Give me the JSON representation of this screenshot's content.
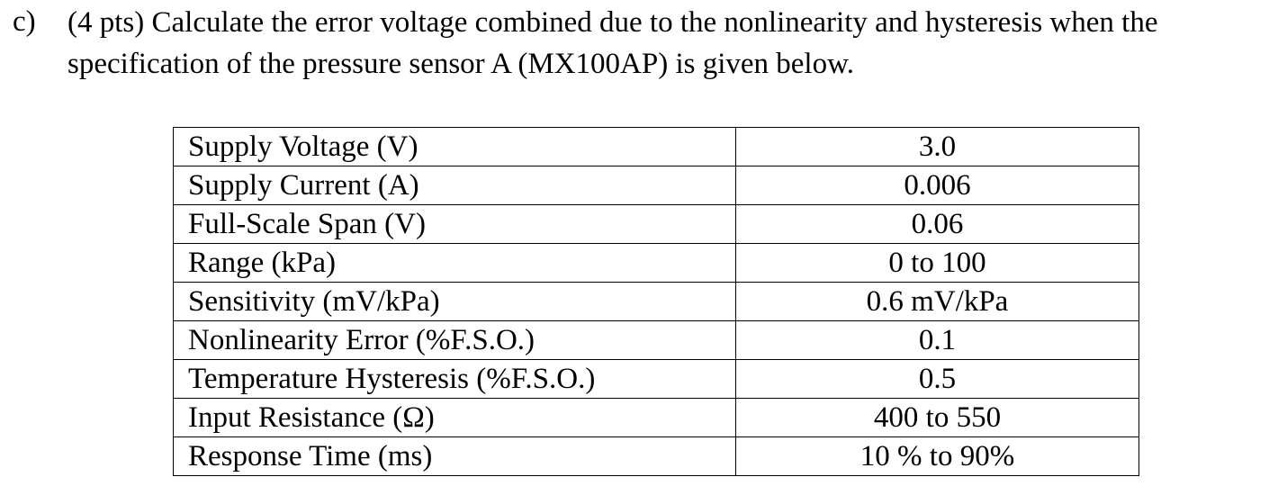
{
  "question": {
    "label": "c)",
    "lines": [
      "(4 pts) Calculate the error voltage combined due to the nonlinearity and hysteresis when the",
      "specification of the pressure sensor A (MX100AP) is given below."
    ]
  },
  "table": {
    "rows": [
      [
        "Supply Voltage (V)",
        "3.0"
      ],
      [
        "Supply Current (A)",
        "0.006"
      ],
      [
        "Full-Scale Span (V)",
        "0.06"
      ],
      [
        "Range (kPa)",
        "0 to 100"
      ],
      [
        "Sensitivity (mV/kPa)",
        "0.6 mV/kPa"
      ],
      [
        "Nonlinearity Error (%F.S.O.)",
        "0.1"
      ],
      [
        "Temperature Hysteresis (%F.S.O.)",
        "0.5"
      ],
      [
        "Input Resistance (Ω)",
        "400 to 550"
      ],
      [
        "Response Time (ms)",
        "10 % to 90%"
      ]
    ]
  }
}
